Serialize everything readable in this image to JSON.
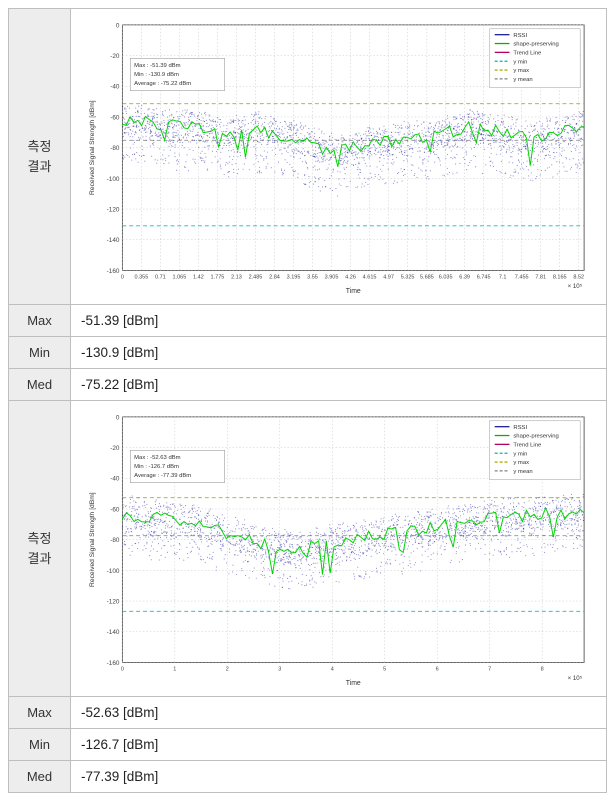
{
  "labels": {
    "measurement_result": "측정\n결과",
    "max": "Max",
    "min": "Min",
    "med": "Med"
  },
  "unit": "[dBm]",
  "sections": [
    {
      "stats": {
        "max": "-51.39",
        "min": "-130.9",
        "med": "-75.22"
      },
      "chart": {
        "ylim": [
          -160,
          0
        ],
        "ytick_step": 20,
        "xlim": [
          0,
          8.62
        ],
        "xlabel": "Time",
        "xexp_label": "× 10⁵",
        "ylabel": "Received Signal Strength [dBm]",
        "xticks": [
          0,
          0.355,
          0.71,
          1.065,
          1.42,
          1.775,
          2.13,
          2.485,
          2.84,
          3.195,
          3.55,
          3.905,
          4.26,
          4.615,
          4.97,
          5.325,
          5.685,
          6.035,
          6.39,
          6.745,
          7.1,
          7.455,
          7.81,
          8.165,
          8.52
        ],
        "legend": [
          "RSSI",
          "shape-preserving",
          "Trend Line",
          "y min",
          "y max",
          "y mean"
        ],
        "legend_colors": [
          "#1a1a9a",
          "#00b400",
          "#b00060",
          "#00b4b4",
          "#b0b000",
          "#808080"
        ],
        "annotation": {
          "lines": [
            "Max : -51.39 dBm",
            "Min : -130.9 dBm",
            "Average : -75.22 dBm"
          ]
        },
        "colors": {
          "background": "#ffffff",
          "axis": "#3a3a3a",
          "grid": "#b8b8b8",
          "scatter": "#1a1a9a",
          "line_green": "#00d400",
          "line_ymin": "#00c4c4",
          "line_ymax": "#b0b000",
          "line_ymean": "#909090"
        },
        "ref_lines": {
          "ymax": -51.39,
          "ymin": -130.9,
          "ymean": -75.22
        },
        "scatter_density": 2600,
        "shape_line": [
          -62,
          -63,
          -65,
          -66,
          -65,
          -72,
          -70,
          -68,
          -71,
          -73,
          -78,
          -82,
          -80,
          -77,
          -76,
          -72,
          -74,
          -70,
          -66,
          -68,
          -71,
          -73,
          -72,
          -69,
          -67
        ],
        "band": {
          "top_jitter": 10,
          "bot_jitter": 28
        }
      }
    },
    {
      "stats": {
        "max": "-52.63",
        "min": "-126.7",
        "med": "-77.39"
      },
      "chart": {
        "ylim": [
          -160,
          0
        ],
        "ytick_step": 20,
        "xlim": [
          0,
          8.8
        ],
        "xlabel": "Time",
        "xexp_label": "× 10⁵",
        "ylabel": "Received Signal Strength [dBm]",
        "xticks": [
          0,
          1,
          2,
          3,
          4,
          5,
          6,
          7,
          8
        ],
        "legend": [
          "RSSI",
          "shape-preserving",
          "Trend Line",
          "y min",
          "y max",
          "y mean"
        ],
        "legend_colors": [
          "#1a1a9a",
          "#00b400",
          "#b00060",
          "#00b4b4",
          "#b0b000",
          "#808080"
        ],
        "annotation": {
          "lines": [
            "Max : -52.63 dBm",
            "Min : -126.7 dBm",
            "Average : -77.39 dBm"
          ]
        },
        "colors": {
          "background": "#ffffff",
          "axis": "#3a3a3a",
          "grid": "#b8b8b8",
          "scatter": "#1a1a9a",
          "line_green": "#00d400",
          "line_ymin": "#00c4c4",
          "line_ymax": "#b0b000",
          "line_ymean": "#909090"
        },
        "ref_lines": {
          "ymax": -52.63,
          "ymin": -126.7,
          "ymean": -77.39
        },
        "scatter_density": 2400,
        "shape_line": [
          -63,
          -65,
          -66,
          -68,
          -70,
          -74,
          -78,
          -82,
          -85,
          -86,
          -84,
          -82,
          -80,
          -78,
          -76,
          -75,
          -72,
          -70,
          -68,
          -66,
          -65,
          -64,
          -63,
          -63,
          -62
        ],
        "band": {
          "top_jitter": 11,
          "bot_jitter": 26
        }
      }
    }
  ]
}
